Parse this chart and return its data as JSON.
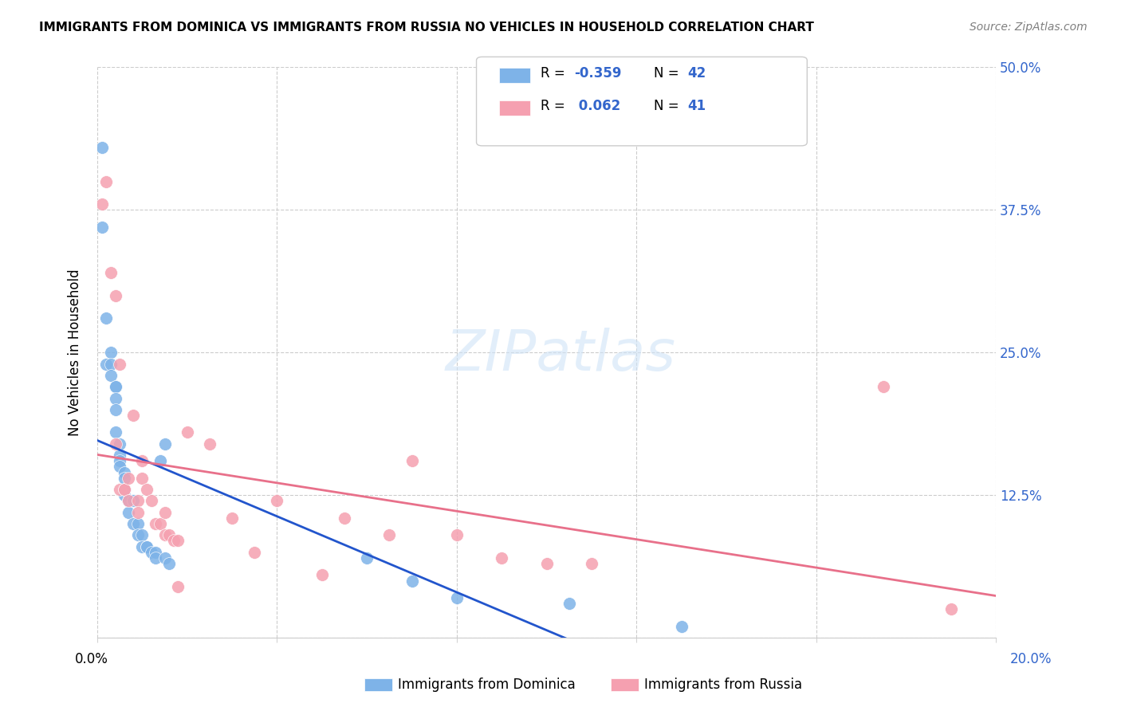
{
  "title": "IMMIGRANTS FROM DOMINICA VS IMMIGRANTS FROM RUSSIA NO VEHICLES IN HOUSEHOLD CORRELATION CHART",
  "source": "Source: ZipAtlas.com",
  "ylabel": "No Vehicles in Household",
  "yticks": [
    0.0,
    0.125,
    0.25,
    0.375,
    0.5
  ],
  "ytick_labels": [
    "",
    "12.5%",
    "25.0%",
    "37.5%",
    "50.0%"
  ],
  "xticks": [
    0.0,
    0.04,
    0.08,
    0.12,
    0.16,
    0.2
  ],
  "legend_label1": "Immigrants from Dominica",
  "legend_label2": "Immigrants from Russia",
  "blue_color": "#7EB3E8",
  "pink_color": "#F5A0B0",
  "blue_line_color": "#2255CC",
  "pink_line_color": "#E8708A",
  "r1": -0.359,
  "r2": 0.062,
  "n1": 42,
  "n2": 41,
  "dominica_x": [
    0.001,
    0.001,
    0.002,
    0.002,
    0.003,
    0.003,
    0.003,
    0.004,
    0.004,
    0.004,
    0.004,
    0.004,
    0.005,
    0.005,
    0.005,
    0.005,
    0.006,
    0.006,
    0.006,
    0.006,
    0.007,
    0.007,
    0.008,
    0.008,
    0.009,
    0.009,
    0.01,
    0.01,
    0.011,
    0.011,
    0.012,
    0.013,
    0.013,
    0.014,
    0.015,
    0.015,
    0.016,
    0.06,
    0.07,
    0.08,
    0.105,
    0.13
  ],
  "dominica_y": [
    0.43,
    0.36,
    0.24,
    0.28,
    0.25,
    0.24,
    0.23,
    0.22,
    0.22,
    0.21,
    0.2,
    0.18,
    0.17,
    0.16,
    0.155,
    0.15,
    0.145,
    0.14,
    0.13,
    0.125,
    0.12,
    0.11,
    0.12,
    0.1,
    0.1,
    0.09,
    0.09,
    0.08,
    0.08,
    0.08,
    0.075,
    0.075,
    0.07,
    0.155,
    0.17,
    0.07,
    0.065,
    0.07,
    0.05,
    0.035,
    0.03,
    0.01
  ],
  "russia_x": [
    0.001,
    0.002,
    0.003,
    0.004,
    0.004,
    0.005,
    0.005,
    0.006,
    0.006,
    0.007,
    0.007,
    0.008,
    0.009,
    0.009,
    0.01,
    0.01,
    0.011,
    0.012,
    0.013,
    0.014,
    0.015,
    0.015,
    0.016,
    0.017,
    0.018,
    0.018,
    0.02,
    0.025,
    0.03,
    0.035,
    0.04,
    0.05,
    0.055,
    0.065,
    0.07,
    0.08,
    0.09,
    0.1,
    0.11,
    0.175,
    0.19
  ],
  "russia_y": [
    0.38,
    0.4,
    0.32,
    0.3,
    0.17,
    0.24,
    0.13,
    0.13,
    0.13,
    0.14,
    0.12,
    0.195,
    0.12,
    0.11,
    0.155,
    0.14,
    0.13,
    0.12,
    0.1,
    0.1,
    0.11,
    0.09,
    0.09,
    0.085,
    0.085,
    0.045,
    0.18,
    0.17,
    0.105,
    0.075,
    0.12,
    0.055,
    0.105,
    0.09,
    0.155,
    0.09,
    0.07,
    0.065,
    0.065,
    0.22,
    0.025
  ]
}
